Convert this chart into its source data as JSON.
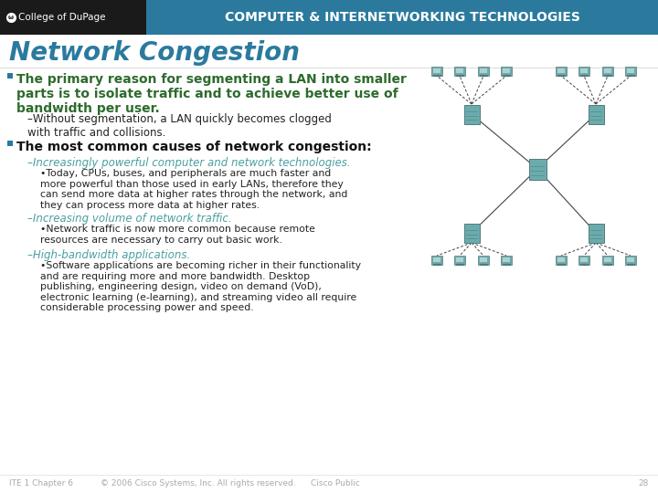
{
  "title": "Network Congestion",
  "header_bg": "#2b7a9e",
  "header_text": "COMPUTER & INTERNETWORKING TECHNOLOGIES",
  "header_text_color": "#ffffff",
  "logo_bg": "#1a1a1a",
  "logo_text": "ω  College of DuPage",
  "title_color": "#2b7a9e",
  "title_fontsize": 20,
  "bg_color": "#ffffff",
  "bullet1_text": "The primary reason for segmenting a LAN into smaller\nparts is to isolate traffic and to achieve better use of\nbandwidth per user.",
  "bullet1_color": "#2d6b2d",
  "bullet1_fontsize": 10,
  "sub1_text": "–Without segmentation, a LAN quickly becomes clogged\nwith traffic and collisions.",
  "sub1_color": "#222222",
  "sub1_fontsize": 8.5,
  "bullet2_text": "The most common causes of network congestion:",
  "bullet2_color": "#111111",
  "bullet2_fontsize": 10,
  "sub2a_text": "–Increasingly powerful computer and network technologies.",
  "sub2a_color": "#4a9fa0",
  "sub2a_fontsize": 8.5,
  "sub2a_detail": "•Today, CPUs, buses, and peripherals are much faster and\nmore powerful than those used in early LANs, therefore they\ncan send more data at higher rates through the network, and\nthey can process more data at higher rates.",
  "sub2a_detail_color": "#222222",
  "sub2a_detail_fontsize": 7.8,
  "sub2b_text": "–Increasing volume of network traffic.",
  "sub2b_color": "#4a9fa0",
  "sub2b_fontsize": 8.5,
  "sub2b_detail": "•Network traffic is now more common because remote\nresources are necessary to carry out basic work.",
  "sub2b_detail_color": "#222222",
  "sub2b_detail_fontsize": 7.8,
  "sub2c_text": "–High-bandwidth applications.",
  "sub2c_color": "#4a9fa0",
  "sub2c_fontsize": 8.5,
  "sub2c_detail": "•Software applications are becoming richer in their functionality\nand are requiring more and more bandwidth. Desktop\npublishing, engineering design, video on demand (VoD),\nelectronic learning (e-learning), and streaming video all require\nconsiderable processing power and speed.",
  "sub2c_detail_color": "#222222",
  "sub2c_detail_fontsize": 7.8,
  "footer_text1": "ITE 1 Chapter 6",
  "footer_text2": "© 2006 Cisco Systems, Inc. All rights reserved.",
  "footer_text3": "Cisco Public",
  "footer_page": "28",
  "footer_color": "#aaaaaa",
  "footer_fontsize": 6.5,
  "bullet_square_color": "#2b7a9e",
  "net_color": "#6aacad",
  "net_line_color": "#444444"
}
